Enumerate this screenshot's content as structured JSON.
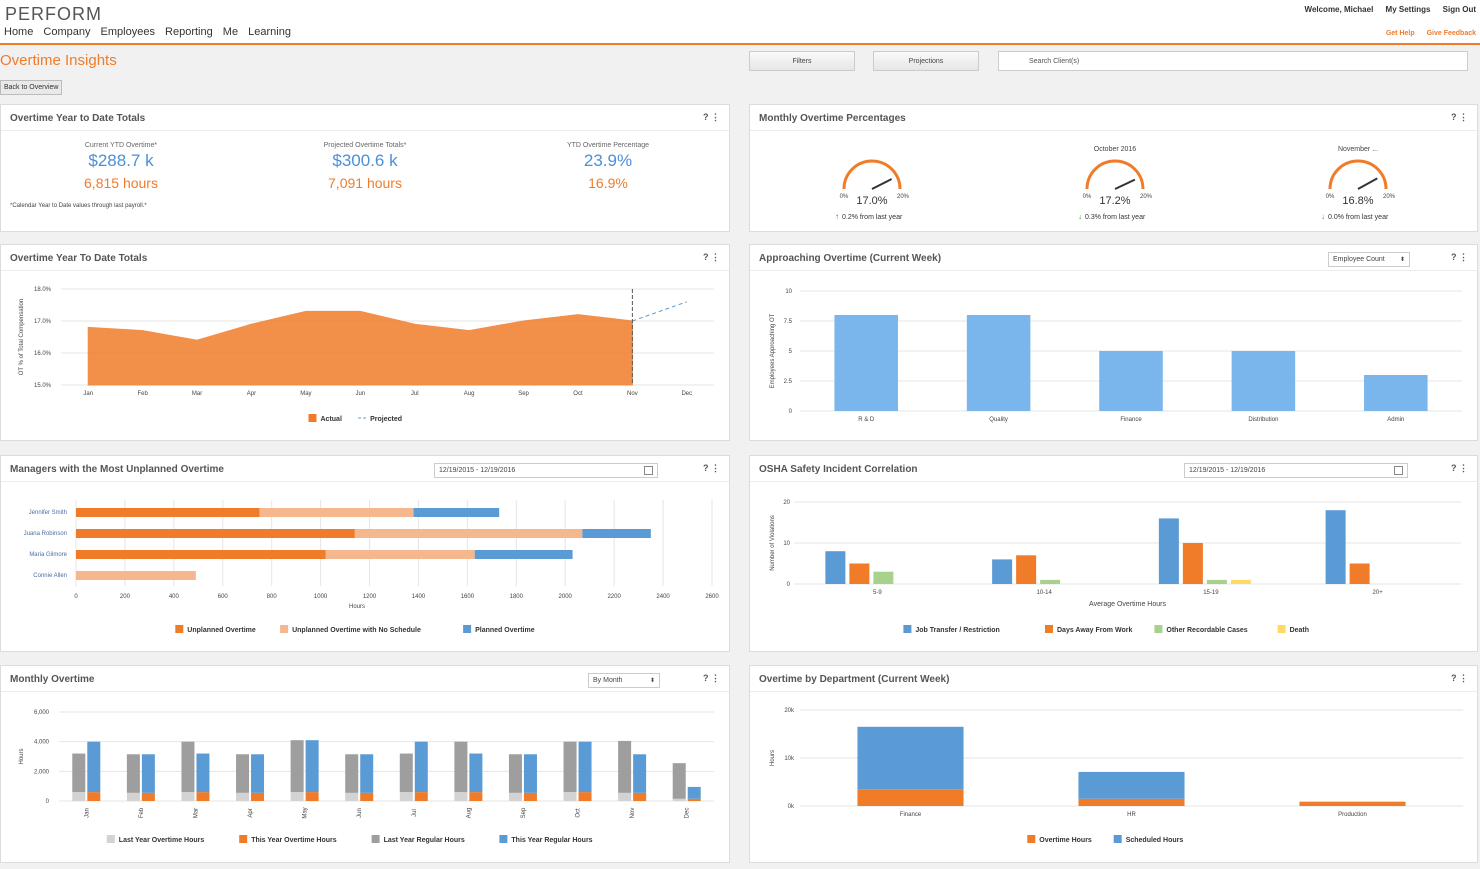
{
  "app": {
    "logo": "PERFORM",
    "nav": [
      "Home",
      "Company",
      "Employees",
      "Reporting",
      "Me",
      "Learning"
    ],
    "welcome": "Welcome, Michael",
    "settings": "My Settings",
    "signout": "Sign Out",
    "help": "Get Help",
    "feedback": "Give Feedback"
  },
  "page": {
    "title": "Overtime Insights",
    "back": "Back to Overview",
    "filters": "Filters",
    "projections": "Projections",
    "search_placeholder": "Search Client(s)"
  },
  "colors": {
    "orange": "#f07c2a",
    "light_orange": "#f5b88e",
    "blue": "#5b9bd5",
    "light_blue": "#7ab6ec",
    "gray": "#9e9e9e",
    "light_gray": "#d3d3d3",
    "green": "#a9d18e",
    "yellow": "#ffd966"
  },
  "ytd": {
    "title": "Overtime Year to Date Totals",
    "k1_label": "Current YTD Overtime*",
    "k1_value": "$288.7 k",
    "k1_hours": "6,815 hours",
    "k2_label": "Projected Overtime Totals*",
    "k2_value": "$300.6 k",
    "k2_hours": "7,091 hours",
    "k3_label": "YTD Overtime Percentage",
    "k3_value": "23.9%",
    "k3_sub": "16.9%",
    "note": "*Calendar Year to Date values through last payroll.*"
  },
  "monthly_pct": {
    "title": "Monthly Overtime Percentages",
    "gauges": [
      {
        "title": "",
        "value": "17.0%",
        "pct": 17.0,
        "min": "0%",
        "max": "20%",
        "change": "0.2% from last year",
        "dir": "up"
      },
      {
        "title": "October 2016",
        "value": "17.2%",
        "pct": 17.2,
        "min": "0%",
        "max": "20%",
        "change": "0.3% from last year",
        "dir": "down"
      },
      {
        "title": "November ...",
        "value": "16.8%",
        "pct": 16.8,
        "min": "0%",
        "max": "20%",
        "change": "0.0% from last year",
        "dir": "down"
      }
    ]
  },
  "charts": {
    "area": {
      "title": "Overtime Year To Date Totals",
      "legend_actual": "Actual",
      "legend_projected": "Projected"
    },
    "approach": {
      "title": "Approaching Overtime (Current Week)",
      "select": "Employee Count"
    },
    "managers": {
      "title": "Managers with the Most Unplanned Overtime",
      "date": "12/19/2015 - 12/19/2016"
    },
    "osha": {
      "title": "OSHA Safety Incident Correlation",
      "date": "12/19/2015 - 12/19/2016"
    },
    "monthly": {
      "title": "Monthly Overtime",
      "select": "By Month"
    },
    "dept": {
      "title": "Overtime by Department (Current Week)"
    }
  },
  "chart_data": [
    {
      "type": "area",
      "ylabel": "OT % of Total Compensation",
      "categories": [
        "Jan",
        "Feb",
        "Mar",
        "Apr",
        "May",
        "Jun",
        "Jul",
        "Aug",
        "Sep",
        "Oct",
        "Nov",
        "Dec"
      ],
      "yticks": [
        "15.0%",
        "16.0%",
        "17.0%",
        "18.0%"
      ],
      "ylim": [
        15,
        18
      ],
      "series": [
        {
          "name": "Actual",
          "values": [
            16.8,
            16.7,
            16.4,
            16.9,
            17.3,
            17.3,
            16.9,
            16.7,
            17.0,
            17.2,
            17.0,
            null
          ]
        },
        {
          "name": "Projected",
          "values": [
            null,
            null,
            null,
            null,
            null,
            null,
            null,
            null,
            null,
            null,
            17.0,
            17.6
          ]
        }
      ]
    },
    {
      "type": "bar",
      "ylabel": "Employees Approaching OT",
      "categories": [
        "R & D",
        "Quality",
        "Finance",
        "Distribution",
        "Admin"
      ],
      "values": [
        8,
        8,
        5,
        5,
        3
      ],
      "yticks": [
        "0",
        "2.5",
        "5",
        "7.5",
        "10"
      ],
      "ylim": [
        0,
        10
      ]
    },
    {
      "type": "bar",
      "orientation": "horizontal",
      "stacked": true,
      "xlabel": "Hours",
      "categories": [
        "Jennifer Smith",
        "Juana Robinson",
        "Maria Gilmore",
        "Connie Allen"
      ],
      "xticks": [
        "0",
        "200",
        "400",
        "600",
        "800",
        "1000",
        "1200",
        "1400",
        "1600",
        "1800",
        "2000",
        "2200",
        "2400",
        "2600"
      ],
      "xlim": [
        0,
        2600
      ],
      "series": [
        {
          "name": "Unplanned Overtime",
          "values": [
            750,
            1140,
            1020,
            0
          ]
        },
        {
          "name": "Unplanned Overtime with No Schedule",
          "values": [
            630,
            930,
            610,
            490
          ]
        },
        {
          "name": "Planned Overtime",
          "values": [
            350,
            280,
            400,
            0
          ]
        }
      ]
    },
    {
      "type": "bar",
      "ylabel": "Number of Violations",
      "xlabel": "Average Overtime Hours",
      "categories": [
        "5-9",
        "10-14",
        "15-19",
        "20+"
      ],
      "yticks": [
        "0",
        "10",
        "20"
      ],
      "ylim": [
        0,
        20
      ],
      "series": [
        {
          "name": "Job Transfer / Restriction",
          "values": [
            8,
            6,
            16,
            18
          ]
        },
        {
          "name": "Days Away From Work",
          "values": [
            5,
            7,
            10,
            5
          ]
        },
        {
          "name": "Other Recordable Cases",
          "values": [
            3,
            1,
            1,
            0
          ]
        },
        {
          "name": "Death",
          "values": [
            0,
            0,
            1,
            0
          ]
        }
      ]
    },
    {
      "type": "bar",
      "stacked": true,
      "ylabel": "Hours",
      "categories": [
        "Jan",
        "Feb",
        "Mar",
        "Apr",
        "May",
        "Jun",
        "Jul",
        "Aug",
        "Sep",
        "Oct",
        "Nov",
        "Dec"
      ],
      "yticks": [
        "0",
        "2,000",
        "4,000",
        "6,000"
      ],
      "ylim": [
        0,
        6000
      ],
      "series": [
        {
          "name": "Last Year Overtime Hours",
          "group": "last",
          "values": [
            600,
            550,
            600,
            550,
            600,
            550,
            600,
            600,
            550,
            600,
            550,
            150
          ]
        },
        {
          "name": "Last Year Regular Hours",
          "group": "last",
          "values": [
            2600,
            2600,
            3400,
            2600,
            3500,
            2600,
            2600,
            3400,
            2600,
            3400,
            3500,
            2400
          ]
        },
        {
          "name": "This Year Overtime Hours",
          "group": "this",
          "values": [
            600,
            550,
            600,
            550,
            600,
            550,
            600,
            600,
            550,
            600,
            550,
            150
          ]
        },
        {
          "name": "This Year Regular Hours",
          "group": "this",
          "values": [
            3400,
            2600,
            2600,
            2600,
            3500,
            2600,
            3400,
            2600,
            2600,
            3400,
            2600,
            800
          ]
        }
      ]
    },
    {
      "type": "bar",
      "stacked": true,
      "ylabel": "Hours",
      "categories": [
        "Finance",
        "HR",
        "Production"
      ],
      "yticks": [
        "0k",
        "10k",
        "20k"
      ],
      "ylim": [
        0,
        20000
      ],
      "series": [
        {
          "name": "Overtime Hours",
          "values": [
            3500,
            1500,
            900
          ]
        },
        {
          "name": "Scheduled Hours",
          "values": [
            13000,
            5600,
            0
          ]
        }
      ]
    }
  ]
}
